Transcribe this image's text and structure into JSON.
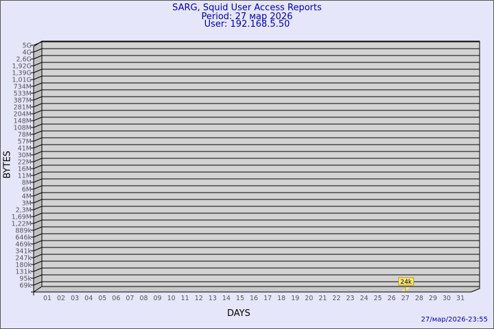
{
  "chart_data": {
    "type": "bar",
    "title": "SARG, Squid User Access Reports",
    "subtitle": [
      "Period: 27 мар 2026",
      "User: 192.168.5.50"
    ],
    "xlabel": "DAYS",
    "ylabel": "BYTES",
    "yscale": "log",
    "y_ticks": [
      "5G",
      "4G",
      "2,6G",
      "1,92G",
      "1,39G",
      "1,01G",
      "734M",
      "533M",
      "387M",
      "281M",
      "204M",
      "148M",
      "108M",
      "78M",
      "57M",
      "41M",
      "30M",
      "22M",
      "16M",
      "11M",
      "8M",
      "6M",
      "4M",
      "3M",
      "2,3M",
      "1,69M",
      "1,22M",
      "889k",
      "646k",
      "469k",
      "341k",
      "247k",
      "180k",
      "131k",
      "95k",
      "69k"
    ],
    "categories": [
      "01",
      "02",
      "03",
      "04",
      "05",
      "06",
      "07",
      "08",
      "09",
      "10",
      "11",
      "12",
      "13",
      "14",
      "15",
      "16",
      "17",
      "18",
      "19",
      "20",
      "21",
      "22",
      "23",
      "24",
      "25",
      "26",
      "27",
      "28",
      "29",
      "30",
      "31"
    ],
    "bars": [
      {
        "category": "27",
        "value": 24000,
        "label": "24k"
      }
    ],
    "grid": true,
    "footer": "27/мар/2026-23:55",
    "colors": {
      "plot": "#d3d3d3",
      "bar": "#ffe680",
      "title": "#0000a0"
    }
  }
}
